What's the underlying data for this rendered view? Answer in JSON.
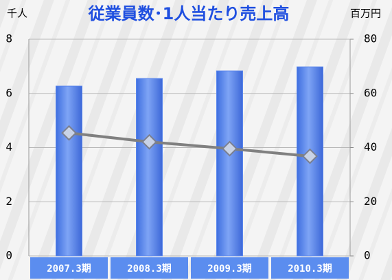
{
  "chart_data": {
    "type": "bar",
    "title": "従業員数･1人当たり売上高",
    "y_label": "千人",
    "y2_label": "百万円",
    "categories": [
      "2007.3期",
      "2008.3期",
      "2009.3期",
      "2010.3期"
    ],
    "series": [
      {
        "type": "bar",
        "color": "#5a86ec",
        "values": [
          6.27,
          6.55,
          6.83,
          6.98
        ]
      },
      {
        "type": "line",
        "axis": "y2",
        "color": "#808080",
        "values": [
          45.4,
          42.1,
          39.6,
          36.8
        ]
      }
    ],
    "ylim": [
      0,
      8
    ],
    "yticks": [
      0,
      2,
      4,
      6,
      8
    ],
    "y2lim": [
      0,
      80
    ],
    "y2ticks": [
      0,
      20,
      40,
      60,
      80
    ],
    "grid": true
  }
}
